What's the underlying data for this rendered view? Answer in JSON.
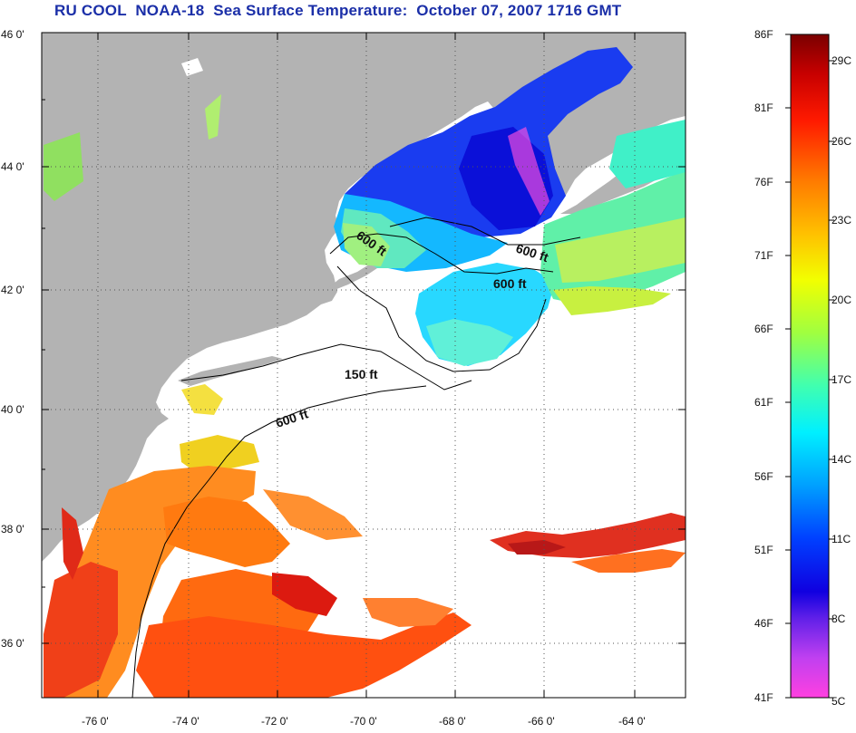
{
  "title": "RU COOL  NOAA-18  Sea Surface Temperature:  October 07, 2007 1716 GMT",
  "map": {
    "lat_ticks": [
      "46 0'",
      "44 0'",
      "42 0'",
      "40 0'",
      "38 0'",
      "36 0'"
    ],
    "lon_ticks": [
      "-76 0'",
      "-74 0'",
      "-72 0'",
      "-70 0'",
      "-68 0'",
      "-66 0'",
      "-64 0'"
    ],
    "isobath_labels": [
      "600 ft",
      "600 ft",
      "600 ft",
      "150 ft",
      "600 ft"
    ]
  },
  "colorbar": {
    "f_labels": [
      "86F",
      "81F",
      "76F",
      "71F",
      "66F",
      "61F",
      "56F",
      "51F",
      "46F",
      "41F"
    ],
    "c_labels": [
      "29C",
      "26C",
      "23C",
      "20C",
      "17C",
      "14C",
      "11C",
      "8C",
      "5C"
    ]
  },
  "colors": {
    "land": "#b3b3b3",
    "ocean_cloud": "#ffffff",
    "title": "#1b2fa8"
  }
}
